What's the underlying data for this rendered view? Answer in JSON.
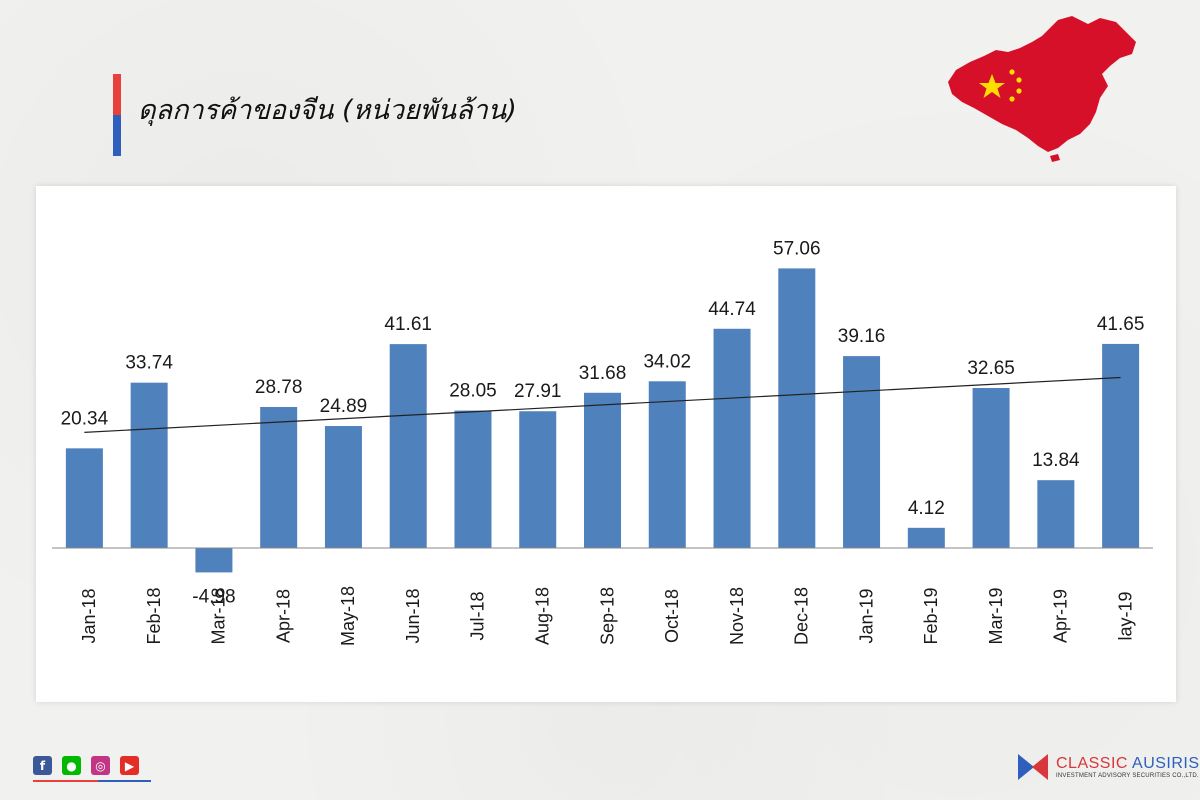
{
  "header": {
    "title": "ดุลการค้าของจีน (หน่วยพันล้าน)",
    "accent_colors": [
      "#e8403d",
      "#2e5fbd"
    ]
  },
  "decoration": {
    "map_icon": "china-flag-map-icon",
    "map_color": "#d7102a",
    "star_color": "#ffde00"
  },
  "chart_data": {
    "type": "bar",
    "categories": [
      "Jan-18",
      "Feb-18",
      "Mar-18",
      "Apr-18",
      "May-18",
      "Jun-18",
      "Jul-18",
      "Aug-18",
      "Sep-18",
      "Oct-18",
      "Nov-18",
      "Dec-18",
      "Jan-19",
      "Feb-19",
      "Mar-19",
      "Apr-19",
      "lay-19"
    ],
    "series": [
      {
        "values": [
          20.34,
          33.74,
          -4.98,
          28.78,
          24.89,
          41.61,
          28.05,
          27.91,
          31.68,
          34.02,
          44.74,
          57.06,
          39.16,
          4.12,
          32.65,
          13.84,
          41.65
        ]
      }
    ],
    "data_labels": [
      "20.34",
      "33.74",
      "-4.98",
      "28.78",
      "24.89",
      "41.61",
      "28.05",
      "27.91",
      "31.68",
      "34.02",
      "44.74",
      "57.06",
      "39.16",
      "4.12",
      "32.65",
      "13.84",
      "41.65"
    ],
    "trendline": {
      "type": "linear",
      "start": 23.6,
      "end": 34.8
    },
    "bar_color": "#4f81bd",
    "grid": false,
    "legend": "none",
    "ylim": [
      -10,
      70
    ],
    "xlabel": "",
    "ylabel": ""
  },
  "footer": {
    "social_icons": [
      "facebook-icon",
      "line-icon",
      "instagram-icon",
      "youtube-icon"
    ],
    "brand_name_part1": "CLASSIC",
    "brand_name_part2": "AUSIRIS",
    "brand_tagline": "INVESTMENT ADVISORY SECURITIES CO.,LTD."
  }
}
